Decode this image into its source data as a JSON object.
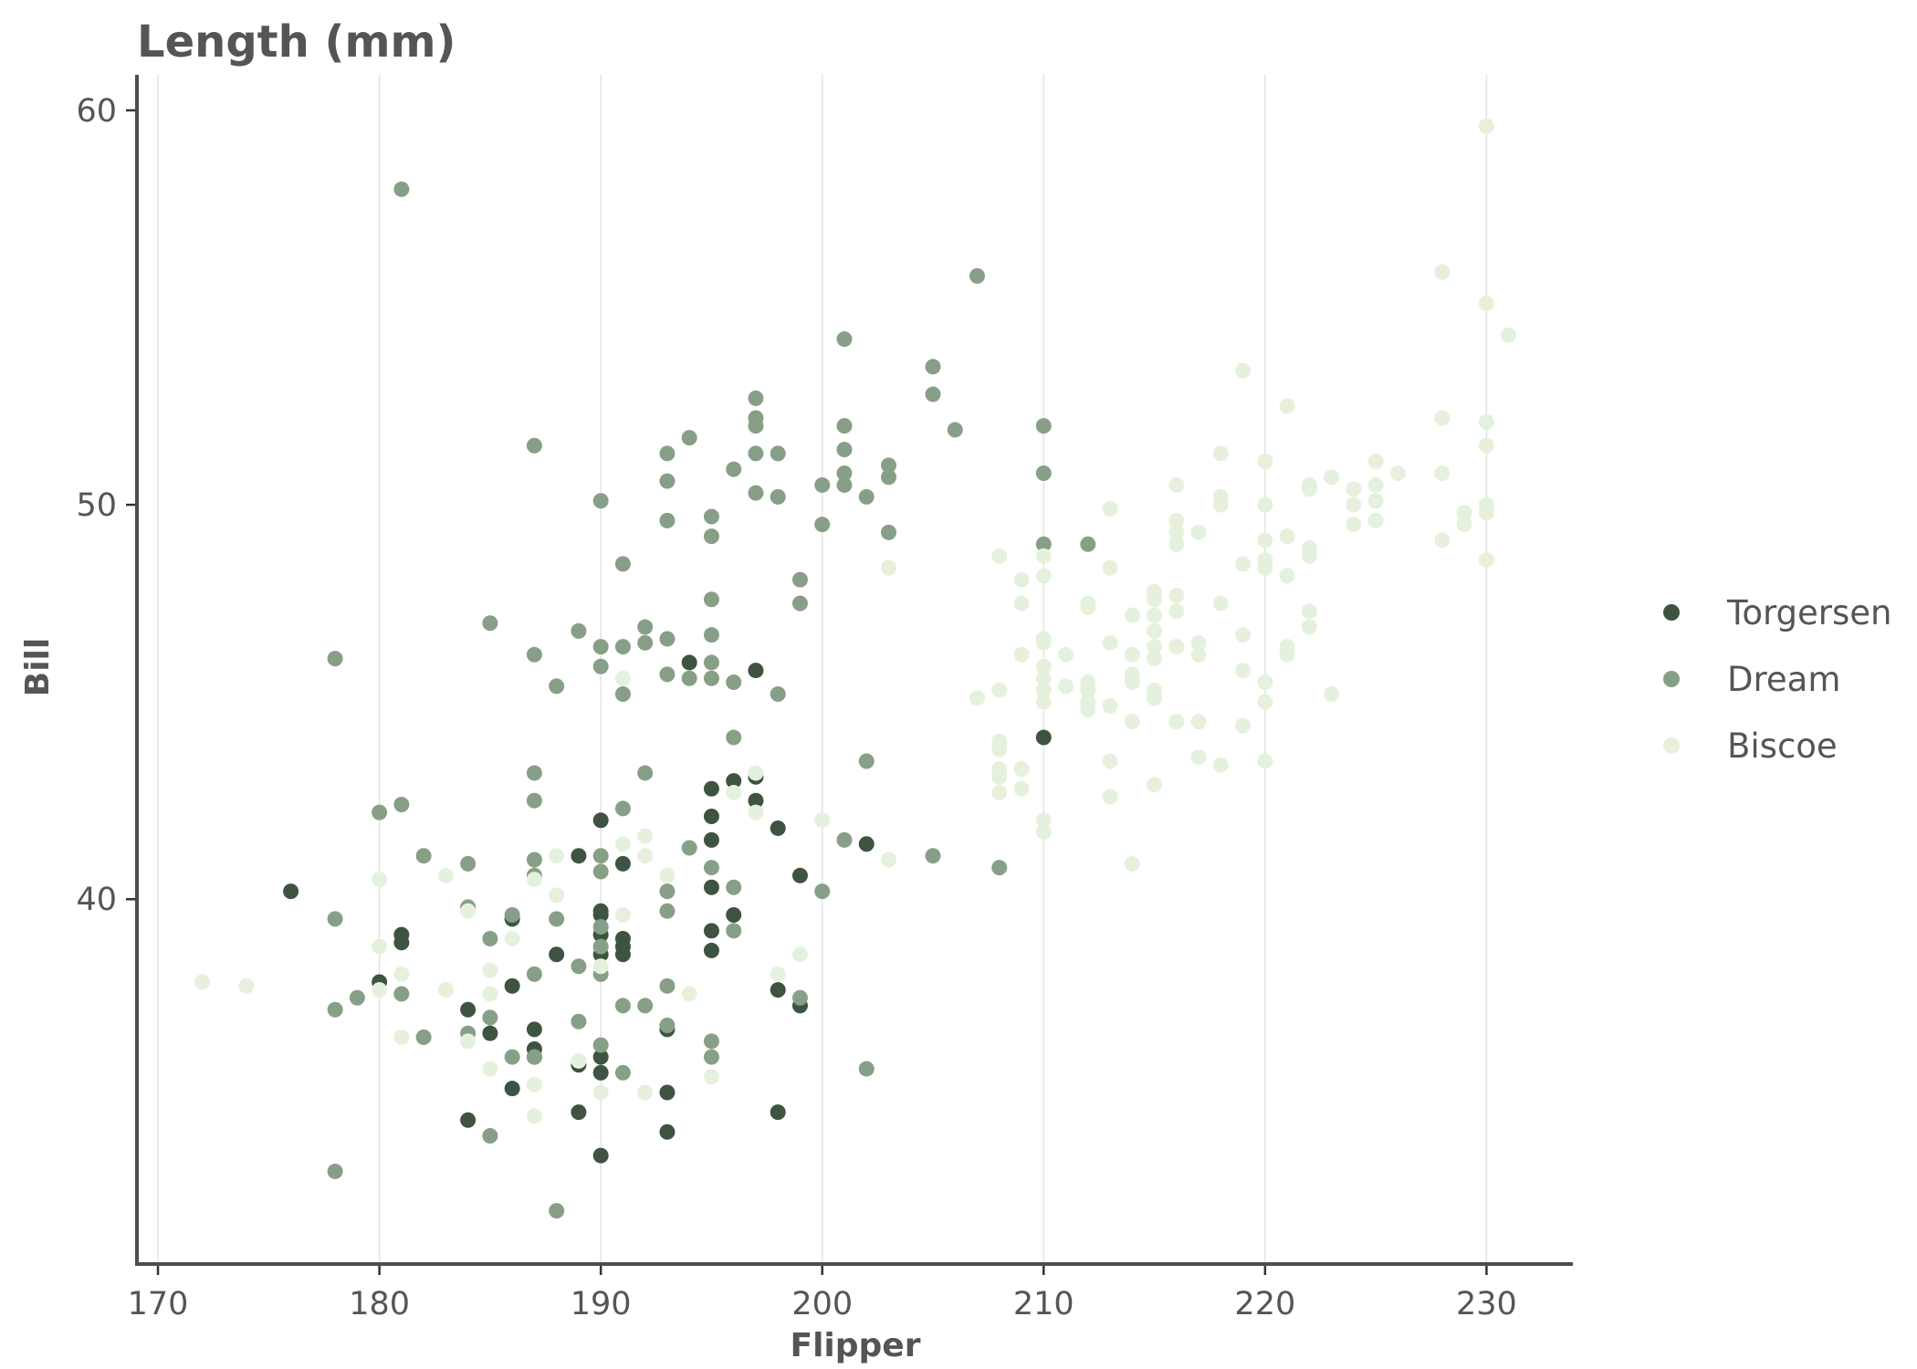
{
  "chart_data": {
    "type": "scatter",
    "title": "Length (mm)",
    "xlabel": "Flipper",
    "ylabel": "Bill",
    "xlim": [
      169.05,
      233.9
    ],
    "ylim": [
      30.75,
      60.9
    ],
    "xticks": [
      170,
      180,
      190,
      200,
      210,
      220,
      230
    ],
    "yticks": [
      40,
      50,
      60
    ],
    "grid": "vertical major lines",
    "legend_position": "right",
    "series": [
      {
        "name": "Torgersen",
        "color": "#3e5341",
        "points": [
          [
            176,
            40.2
          ],
          [
            180,
            37.9
          ],
          [
            181,
            39.1
          ],
          [
            181,
            38.9
          ],
          [
            184,
            37.2
          ],
          [
            184,
            34.4
          ],
          [
            185,
            36.6
          ],
          [
            186,
            37.8
          ],
          [
            186,
            35.2
          ],
          [
            186,
            39.5
          ],
          [
            187,
            36.7
          ],
          [
            187,
            36.2
          ],
          [
            187,
            36.0
          ],
          [
            188,
            38.6
          ],
          [
            189,
            41.1
          ],
          [
            189,
            35.8
          ],
          [
            189,
            34.6
          ],
          [
            190,
            42.0
          ],
          [
            190,
            39.7
          ],
          [
            190,
            39.6
          ],
          [
            190,
            39.1
          ],
          [
            190,
            38.6
          ],
          [
            190,
            36.0
          ],
          [
            190,
            35.6
          ],
          [
            190,
            33.5
          ],
          [
            191,
            40.9
          ],
          [
            191,
            39.0
          ],
          [
            191,
            38.8
          ],
          [
            191,
            38.6
          ],
          [
            193,
            36.7
          ],
          [
            193,
            35.1
          ],
          [
            193,
            34.1
          ],
          [
            194,
            46.0
          ],
          [
            195,
            42.8
          ],
          [
            195,
            42.1
          ],
          [
            195,
            41.5
          ],
          [
            195,
            40.3
          ],
          [
            195,
            39.2
          ],
          [
            195,
            38.7
          ],
          [
            196,
            43.0
          ],
          [
            196,
            39.6
          ],
          [
            197,
            45.8
          ],
          [
            197,
            43.1
          ],
          [
            197,
            42.5
          ],
          [
            198,
            41.8
          ],
          [
            198,
            37.7
          ],
          [
            198,
            34.6
          ],
          [
            199,
            40.6
          ],
          [
            199,
            37.3
          ],
          [
            202,
            41.4
          ],
          [
            210,
            44.1
          ]
        ]
      },
      {
        "name": "Dream",
        "color": "#879f87",
        "points": [
          [
            178,
            46.1
          ],
          [
            178,
            39.5
          ],
          [
            178,
            37.2
          ],
          [
            178,
            33.1
          ],
          [
            179,
            37.5
          ],
          [
            180,
            42.2
          ],
          [
            181,
            58.0
          ],
          [
            181,
            42.4
          ],
          [
            181,
            37.6
          ],
          [
            182,
            41.1
          ],
          [
            182,
            36.5
          ],
          [
            184,
            40.9
          ],
          [
            184,
            39.8
          ],
          [
            184,
            36.6
          ],
          [
            185,
            47.0
          ],
          [
            185,
            39.0
          ],
          [
            185,
            37.0
          ],
          [
            185,
            34.0
          ],
          [
            186,
            39.6
          ],
          [
            186,
            36.0
          ],
          [
            187,
            51.5
          ],
          [
            187,
            46.2
          ],
          [
            187,
            43.2
          ],
          [
            187,
            42.5
          ],
          [
            187,
            41.0
          ],
          [
            187,
            40.6
          ],
          [
            187,
            38.1
          ],
          [
            187,
            36.0
          ],
          [
            188,
            45.4
          ],
          [
            188,
            39.5
          ],
          [
            188,
            32.1
          ],
          [
            189,
            46.8
          ],
          [
            189,
            38.3
          ],
          [
            189,
            36.9
          ],
          [
            190,
            50.1
          ],
          [
            190,
            46.4
          ],
          [
            190,
            45.9
          ],
          [
            190,
            41.1
          ],
          [
            190,
            40.7
          ],
          [
            190,
            39.3
          ],
          [
            190,
            38.8
          ],
          [
            190,
            38.1
          ],
          [
            190,
            36.3
          ],
          [
            191,
            48.5
          ],
          [
            191,
            46.4
          ],
          [
            191,
            45.2
          ],
          [
            191,
            42.3
          ],
          [
            191,
            37.3
          ],
          [
            191,
            35.6
          ],
          [
            192,
            46.9
          ],
          [
            192,
            46.5
          ],
          [
            192,
            43.2
          ],
          [
            192,
            37.3
          ],
          [
            193,
            51.3
          ],
          [
            193,
            50.6
          ],
          [
            193,
            49.6
          ],
          [
            193,
            46.6
          ],
          [
            193,
            45.7
          ],
          [
            193,
            40.2
          ],
          [
            193,
            39.7
          ],
          [
            193,
            37.8
          ],
          [
            193,
            36.8
          ],
          [
            194,
            51.7
          ],
          [
            194,
            45.6
          ],
          [
            194,
            41.3
          ],
          [
            195,
            49.7
          ],
          [
            195,
            49.2
          ],
          [
            195,
            47.6
          ],
          [
            195,
            46.7
          ],
          [
            195,
            46.0
          ],
          [
            195,
            45.6
          ],
          [
            195,
            40.8
          ],
          [
            195,
            36.4
          ],
          [
            195,
            36.0
          ],
          [
            196,
            50.9
          ],
          [
            196,
            45.5
          ],
          [
            196,
            44.1
          ],
          [
            196,
            40.3
          ],
          [
            196,
            39.2
          ],
          [
            197,
            52.7
          ],
          [
            197,
            52.2
          ],
          [
            197,
            52.0
          ],
          [
            197,
            51.3
          ],
          [
            197,
            50.3
          ],
          [
            198,
            51.3
          ],
          [
            198,
            50.2
          ],
          [
            198,
            45.2
          ],
          [
            199,
            48.1
          ],
          [
            199,
            47.5
          ],
          [
            199,
            37.5
          ],
          [
            200,
            50.5
          ],
          [
            200,
            49.5
          ],
          [
            200,
            40.2
          ],
          [
            201,
            54.2
          ],
          [
            201,
            52.0
          ],
          [
            201,
            51.4
          ],
          [
            201,
            50.8
          ],
          [
            201,
            50.5
          ],
          [
            201,
            41.5
          ],
          [
            202,
            50.2
          ],
          [
            202,
            43.5
          ],
          [
            202,
            35.7
          ],
          [
            203,
            51.0
          ],
          [
            203,
            50.7
          ],
          [
            203,
            49.3
          ],
          [
            205,
            53.5
          ],
          [
            205,
            52.8
          ],
          [
            205,
            41.1
          ],
          [
            206,
            51.9
          ],
          [
            207,
            55.8
          ],
          [
            208,
            40.8
          ],
          [
            210,
            52.0
          ],
          [
            210,
            50.8
          ],
          [
            210,
            49.0
          ],
          [
            212,
            49.0
          ]
        ]
      },
      {
        "name": "Biscoe",
        "color": "#e5f1dd",
        "points": [
          [
            172,
            37.9
          ],
          [
            174,
            37.8
          ],
          [
            180,
            40.5
          ],
          [
            180,
            38.8
          ],
          [
            180,
            37.7
          ],
          [
            181,
            38.1
          ],
          [
            181,
            36.5
          ],
          [
            183,
            40.6
          ],
          [
            183,
            37.7
          ],
          [
            184,
            39.7
          ],
          [
            184,
            36.4
          ],
          [
            185,
            38.2
          ],
          [
            185,
            37.6
          ],
          [
            185,
            35.7
          ],
          [
            186,
            39.0
          ],
          [
            187,
            40.5
          ],
          [
            187,
            35.3
          ],
          [
            187,
            34.5
          ],
          [
            188,
            41.1
          ],
          [
            188,
            40.1
          ],
          [
            189,
            35.9
          ],
          [
            190,
            38.3
          ],
          [
            190,
            35.1
          ],
          [
            191,
            41.4
          ],
          [
            191,
            39.6
          ],
          [
            191,
            45.6
          ],
          [
            192,
            41.6
          ],
          [
            192,
            41.1
          ],
          [
            192,
            35.1
          ],
          [
            193,
            40.6
          ],
          [
            194,
            37.6
          ],
          [
            195,
            35.5
          ],
          [
            196,
            42.7
          ],
          [
            197,
            43.2
          ],
          [
            197,
            42.2
          ],
          [
            198,
            38.1
          ],
          [
            199,
            38.6
          ],
          [
            200,
            42.0
          ],
          [
            203,
            48.4
          ],
          [
            203,
            41.0
          ],
          [
            207,
            45.1
          ],
          [
            208,
            48.7
          ],
          [
            208,
            45.3
          ],
          [
            208,
            44.0
          ],
          [
            208,
            43.8
          ],
          [
            208,
            43.3
          ],
          [
            208,
            43.1
          ],
          [
            208,
            42.7
          ],
          [
            209,
            48.1
          ],
          [
            209,
            47.5
          ],
          [
            209,
            46.2
          ],
          [
            209,
            43.3
          ],
          [
            209,
            42.8
          ],
          [
            210,
            48.7
          ],
          [
            210,
            48.2
          ],
          [
            210,
            46.6
          ],
          [
            210,
            46.5
          ],
          [
            210,
            45.9
          ],
          [
            210,
            45.6
          ],
          [
            210,
            45.3
          ],
          [
            210,
            45.0
          ],
          [
            210,
            42.0
          ],
          [
            210,
            41.7
          ],
          [
            211,
            46.2
          ],
          [
            211,
            45.4
          ],
          [
            212,
            47.5
          ],
          [
            212,
            47.4
          ],
          [
            212,
            45.5
          ],
          [
            212,
            45.3
          ],
          [
            212,
            45.0
          ],
          [
            212,
            44.8
          ],
          [
            213,
            49.9
          ],
          [
            213,
            48.4
          ],
          [
            213,
            46.5
          ],
          [
            213,
            44.9
          ],
          [
            213,
            43.5
          ],
          [
            213,
            42.6
          ],
          [
            214,
            47.2
          ],
          [
            214,
            46.2
          ],
          [
            214,
            45.7
          ],
          [
            214,
            45.5
          ],
          [
            214,
            44.5
          ],
          [
            214,
            40.9
          ],
          [
            215,
            47.8
          ],
          [
            215,
            47.6
          ],
          [
            215,
            47.2
          ],
          [
            215,
            46.8
          ],
          [
            215,
            46.4
          ],
          [
            215,
            46.1
          ],
          [
            215,
            45.3
          ],
          [
            215,
            45.1
          ],
          [
            215,
            42.9
          ],
          [
            216,
            50.5
          ],
          [
            216,
            49.6
          ],
          [
            216,
            49.3
          ],
          [
            216,
            49.0
          ],
          [
            216,
            47.7
          ],
          [
            216,
            47.3
          ],
          [
            216,
            46.4
          ],
          [
            216,
            44.5
          ],
          [
            217,
            49.3
          ],
          [
            217,
            46.5
          ],
          [
            217,
            46.2
          ],
          [
            217,
            44.5
          ],
          [
            217,
            43.6
          ],
          [
            218,
            51.3
          ],
          [
            218,
            50.2
          ],
          [
            218,
            50.0
          ],
          [
            218,
            47.5
          ],
          [
            218,
            43.4
          ],
          [
            219,
            53.4
          ],
          [
            219,
            48.5
          ],
          [
            219,
            46.7
          ],
          [
            219,
            45.8
          ],
          [
            219,
            44.4
          ],
          [
            220,
            51.1
          ],
          [
            220,
            50.0
          ],
          [
            220,
            49.1
          ],
          [
            220,
            48.6
          ],
          [
            220,
            48.4
          ],
          [
            220,
            45.5
          ],
          [
            220,
            45.0
          ],
          [
            220,
            43.5
          ],
          [
            221,
            52.5
          ],
          [
            221,
            49.2
          ],
          [
            221,
            48.2
          ],
          [
            221,
            46.4
          ],
          [
            221,
            46.2
          ],
          [
            222,
            50.5
          ],
          [
            222,
            50.4
          ],
          [
            222,
            48.9
          ],
          [
            222,
            48.7
          ],
          [
            222,
            47.3
          ],
          [
            222,
            46.9
          ],
          [
            223,
            50.7
          ],
          [
            223,
            45.2
          ],
          [
            224,
            50.4
          ],
          [
            224,
            50.0
          ],
          [
            224,
            49.5
          ],
          [
            225,
            51.1
          ],
          [
            225,
            50.5
          ],
          [
            225,
            50.1
          ],
          [
            225,
            49.6
          ],
          [
            226,
            50.8
          ],
          [
            228,
            55.9
          ],
          [
            228,
            52.2
          ],
          [
            228,
            50.8
          ],
          [
            228,
            49.1
          ],
          [
            229,
            49.8
          ],
          [
            229,
            49.5
          ],
          [
            230,
            59.6
          ],
          [
            230,
            55.1
          ],
          [
            230,
            52.1
          ],
          [
            230,
            51.5
          ],
          [
            230,
            50.0
          ],
          [
            230,
            49.8
          ],
          [
            230,
            48.6
          ],
          [
            231,
            54.3
          ]
        ]
      }
    ]
  }
}
